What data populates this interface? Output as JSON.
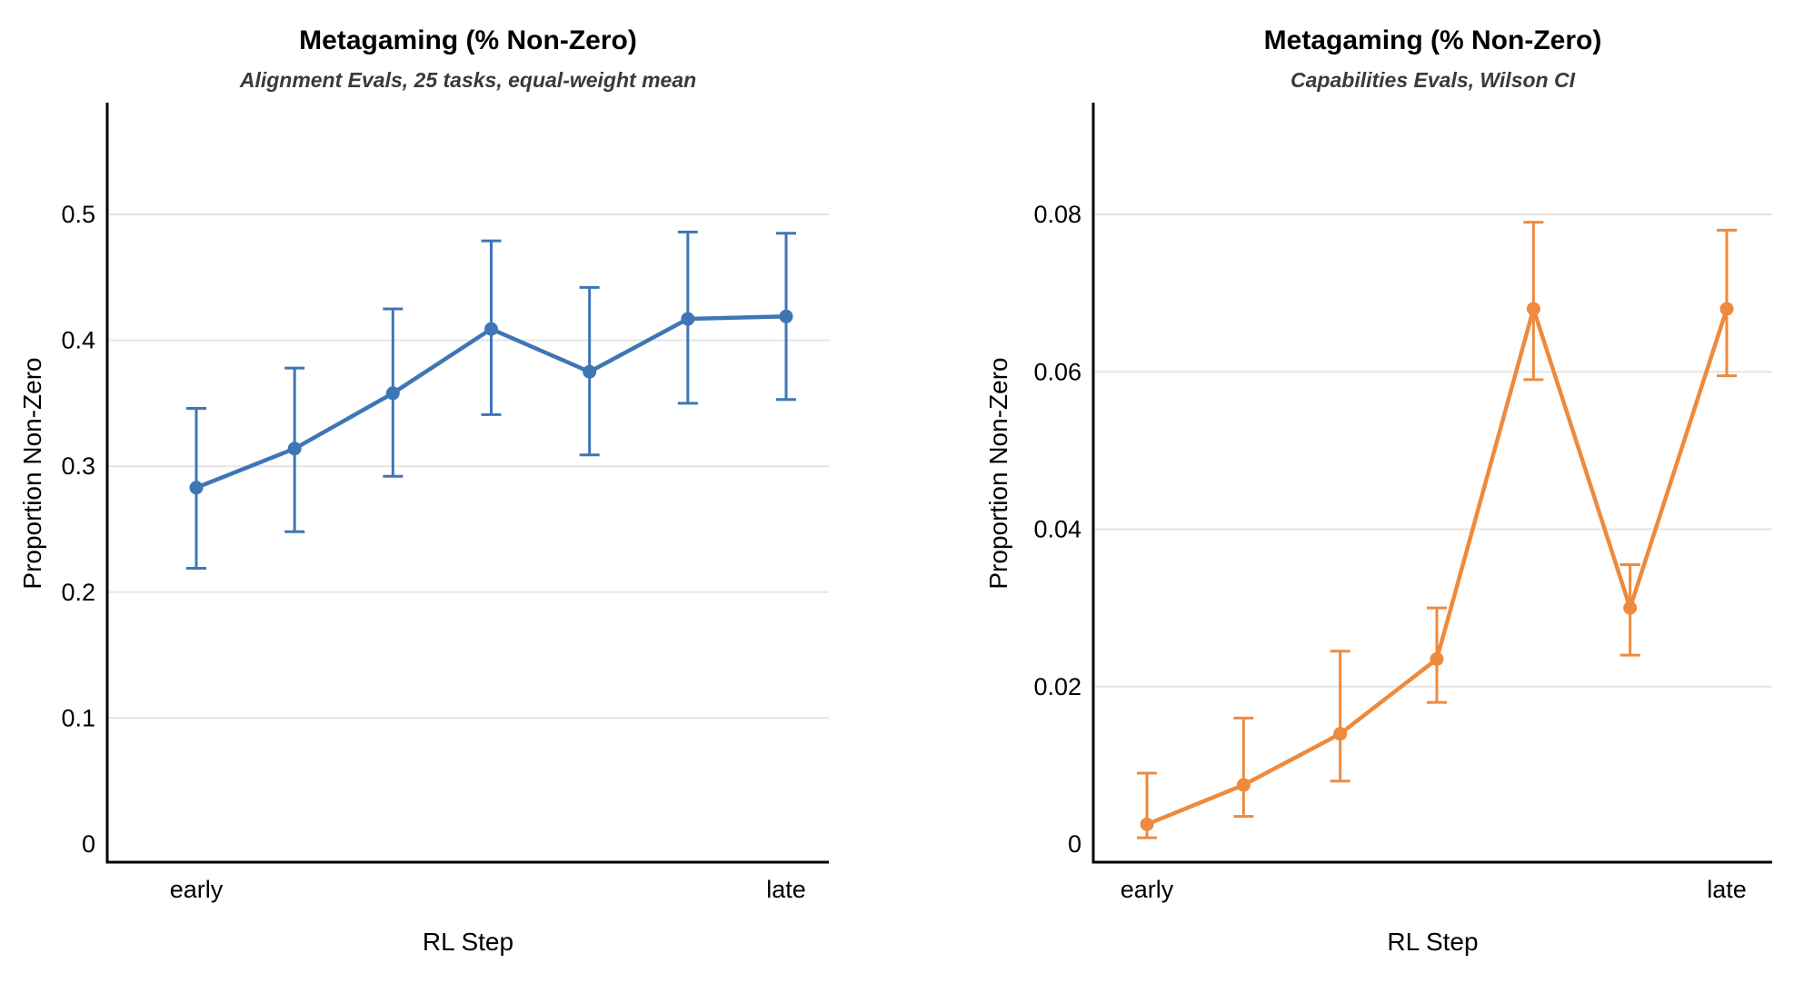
{
  "page": {
    "background_color": "#ffffff",
    "grid_color": "#E5E5E5",
    "spine_color": "#000000",
    "subtitle_color": "#3A3A3A"
  },
  "chart_data": [
    {
      "key": "alignment",
      "type": "line",
      "title": "Metagaming (% Non-Zero)",
      "subtitle": "Alignment Evals, 25 tasks, equal-weight mean",
      "xlabel": "RL Step",
      "ylabel": "Proportion Non-Zero",
      "color": "#3E76B5",
      "marker": "circle",
      "error_bars": "ci",
      "grid": "horizontal",
      "legend": "none",
      "n_points": 7,
      "x_tick_labels": {
        "first": "early",
        "last": "late"
      },
      "values": [
        0.283,
        0.314,
        0.358,
        0.409,
        0.375,
        0.417,
        0.419
      ],
      "ci_low": [
        0.219,
        0.248,
        0.292,
        0.341,
        0.309,
        0.35,
        0.353
      ],
      "ci_high": [
        0.346,
        0.378,
        0.425,
        0.479,
        0.442,
        0.486,
        0.485
      ],
      "ylim": [
        0,
        0.59
      ],
      "yticks": [
        {
          "v": 0.0,
          "label": "0"
        },
        {
          "v": 0.1,
          "label": "0.1"
        },
        {
          "v": 0.2,
          "label": "0.2"
        },
        {
          "v": 0.3,
          "label": "0.3"
        },
        {
          "v": 0.4,
          "label": "0.4"
        },
        {
          "v": 0.5,
          "label": "0.5"
        }
      ]
    },
    {
      "key": "capabilities",
      "type": "line",
      "title": "Metagaming (% Non-Zero)",
      "subtitle": "Capabilities Evals, Wilson CI",
      "xlabel": "RL Step",
      "ylabel": "Proportion Non-Zero",
      "color": "#EE8A3D",
      "marker": "circle",
      "error_bars": "ci",
      "grid": "horizontal",
      "legend": "none",
      "n_points": 7,
      "x_tick_labels": {
        "first": "early",
        "last": "late"
      },
      "values": [
        0.0025,
        0.0075,
        0.014,
        0.0235,
        0.068,
        0.03,
        0.068
      ],
      "ci_low": [
        0.0008,
        0.0035,
        0.008,
        0.018,
        0.059,
        0.024,
        0.0595
      ],
      "ci_high": [
        0.009,
        0.016,
        0.0245,
        0.03,
        0.079,
        0.0355,
        0.078
      ],
      "ylim": [
        0,
        0.0937
      ],
      "yticks": [
        {
          "v": 0.0,
          "label": "0"
        },
        {
          "v": 0.02,
          "label": "0.02"
        },
        {
          "v": 0.04,
          "label": "0.04"
        },
        {
          "v": 0.06,
          "label": "0.06"
        },
        {
          "v": 0.08,
          "label": "0.08"
        }
      ]
    }
  ]
}
